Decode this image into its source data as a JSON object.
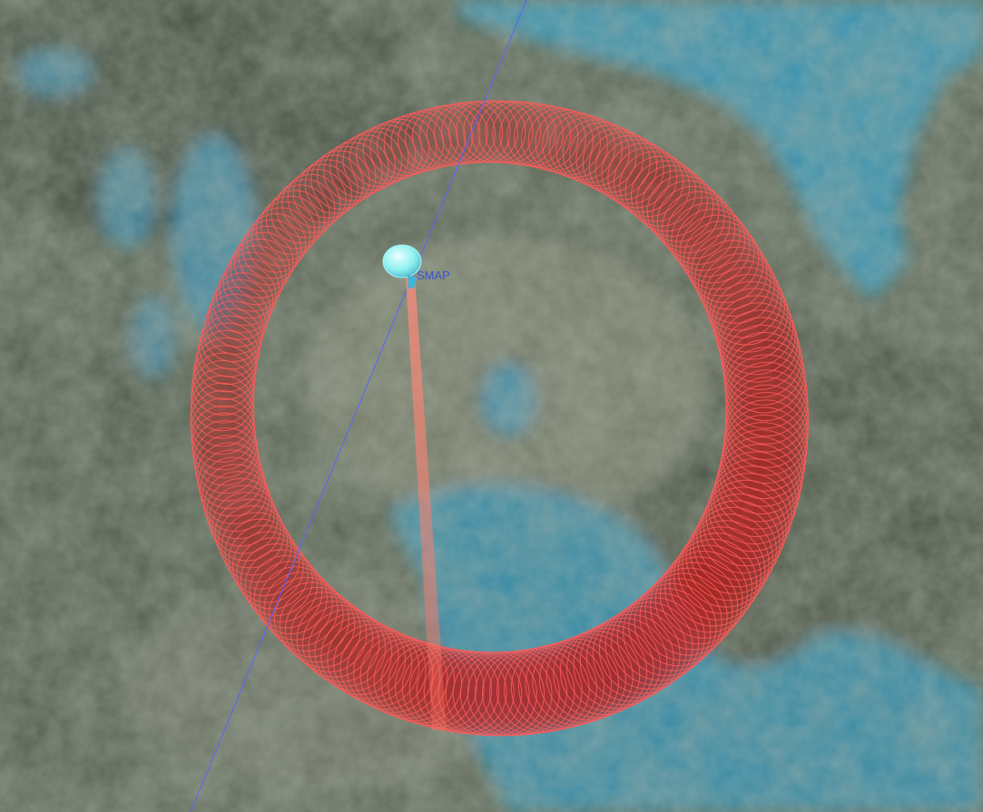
{
  "scene": {
    "satellite": {
      "label": "SMAP",
      "color": "#8ff0f0"
    },
    "footprint_ring": {
      "stroke_color": "#ff5a5a",
      "fill_color": "#b41e1e"
    },
    "ground_track": {
      "color": "#5a64ff"
    },
    "nadir_beam": {
      "color": "#ff7d6e"
    },
    "terrain": {
      "land_color": "#4f5a4a",
      "water_color": "#2f8fb0"
    }
  }
}
